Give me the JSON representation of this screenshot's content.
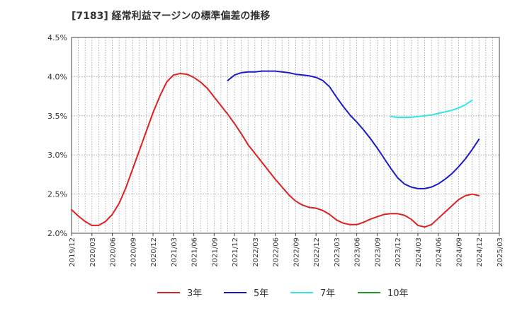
{
  "chart_data": {
    "type": "line",
    "title": "[7183]  経常利益マージンの標準偏差の推移",
    "xlabel": "",
    "ylabel": "",
    "ylim": [
      2.0,
      4.5
    ],
    "y_ticks": [
      "2.0%",
      "2.5%",
      "3.0%",
      "3.5%",
      "4.0%",
      "4.5%"
    ],
    "y_tick_values": [
      2.0,
      2.5,
      3.0,
      3.5,
      4.0,
      4.5
    ],
    "x_ticks": [
      "2019/12",
      "2020/03",
      "2020/06",
      "2020/09",
      "2020/12",
      "2021/03",
      "2021/06",
      "2021/09",
      "2021/12",
      "2022/03",
      "2022/06",
      "2022/09",
      "2022/12",
      "2023/03",
      "2023/06",
      "2023/09",
      "2023/12",
      "2024/03",
      "2024/06",
      "2024/09",
      "2024/12",
      "2025/03"
    ],
    "grid": true,
    "legend_position": "bottom",
    "series": [
      {
        "name": "3年",
        "color": "#e02020",
        "start_index": 0,
        "values": [
          2.3,
          2.22,
          2.15,
          2.1,
          2.1,
          2.15,
          2.24,
          2.38,
          2.58,
          2.82,
          3.06,
          3.3,
          3.54,
          3.75,
          3.93,
          4.02,
          4.04,
          4.03,
          3.99,
          3.93,
          3.85,
          3.74,
          3.63,
          3.52,
          3.4,
          3.27,
          3.13,
          3.02,
          2.91,
          2.8,
          2.69,
          2.59,
          2.49,
          2.41,
          2.36,
          2.33,
          2.32,
          2.29,
          2.24,
          2.17,
          2.13,
          2.11,
          2.11,
          2.14,
          2.18,
          2.21,
          2.24,
          2.25,
          2.25,
          2.23,
          2.18,
          2.1,
          2.08,
          2.11,
          2.19,
          2.27,
          2.35,
          2.43,
          2.48,
          2.5,
          2.48
        ]
      },
      {
        "name": "5年",
        "color": "#1a1acc",
        "start_index": 23,
        "values": [
          3.95,
          4.02,
          4.05,
          4.06,
          4.06,
          4.07,
          4.07,
          4.07,
          4.06,
          4.05,
          4.03,
          4.02,
          4.01,
          3.99,
          3.95,
          3.87,
          3.74,
          3.62,
          3.51,
          3.42,
          3.32,
          3.21,
          3.09,
          2.96,
          2.83,
          2.71,
          2.63,
          2.59,
          2.57,
          2.57,
          2.59,
          2.63,
          2.69,
          2.76,
          2.85,
          2.95,
          3.07,
          3.2
        ]
      },
      {
        "name": "7年",
        "color": "#33e6e6",
        "start_index": 47,
        "values": [
          3.49,
          3.48,
          3.48,
          3.48,
          3.49,
          3.5,
          3.51,
          3.53,
          3.55,
          3.57,
          3.6,
          3.64,
          3.7
        ]
      },
      {
        "name": "10年",
        "color": "#229922",
        "start_index": 0,
        "values": []
      }
    ]
  }
}
